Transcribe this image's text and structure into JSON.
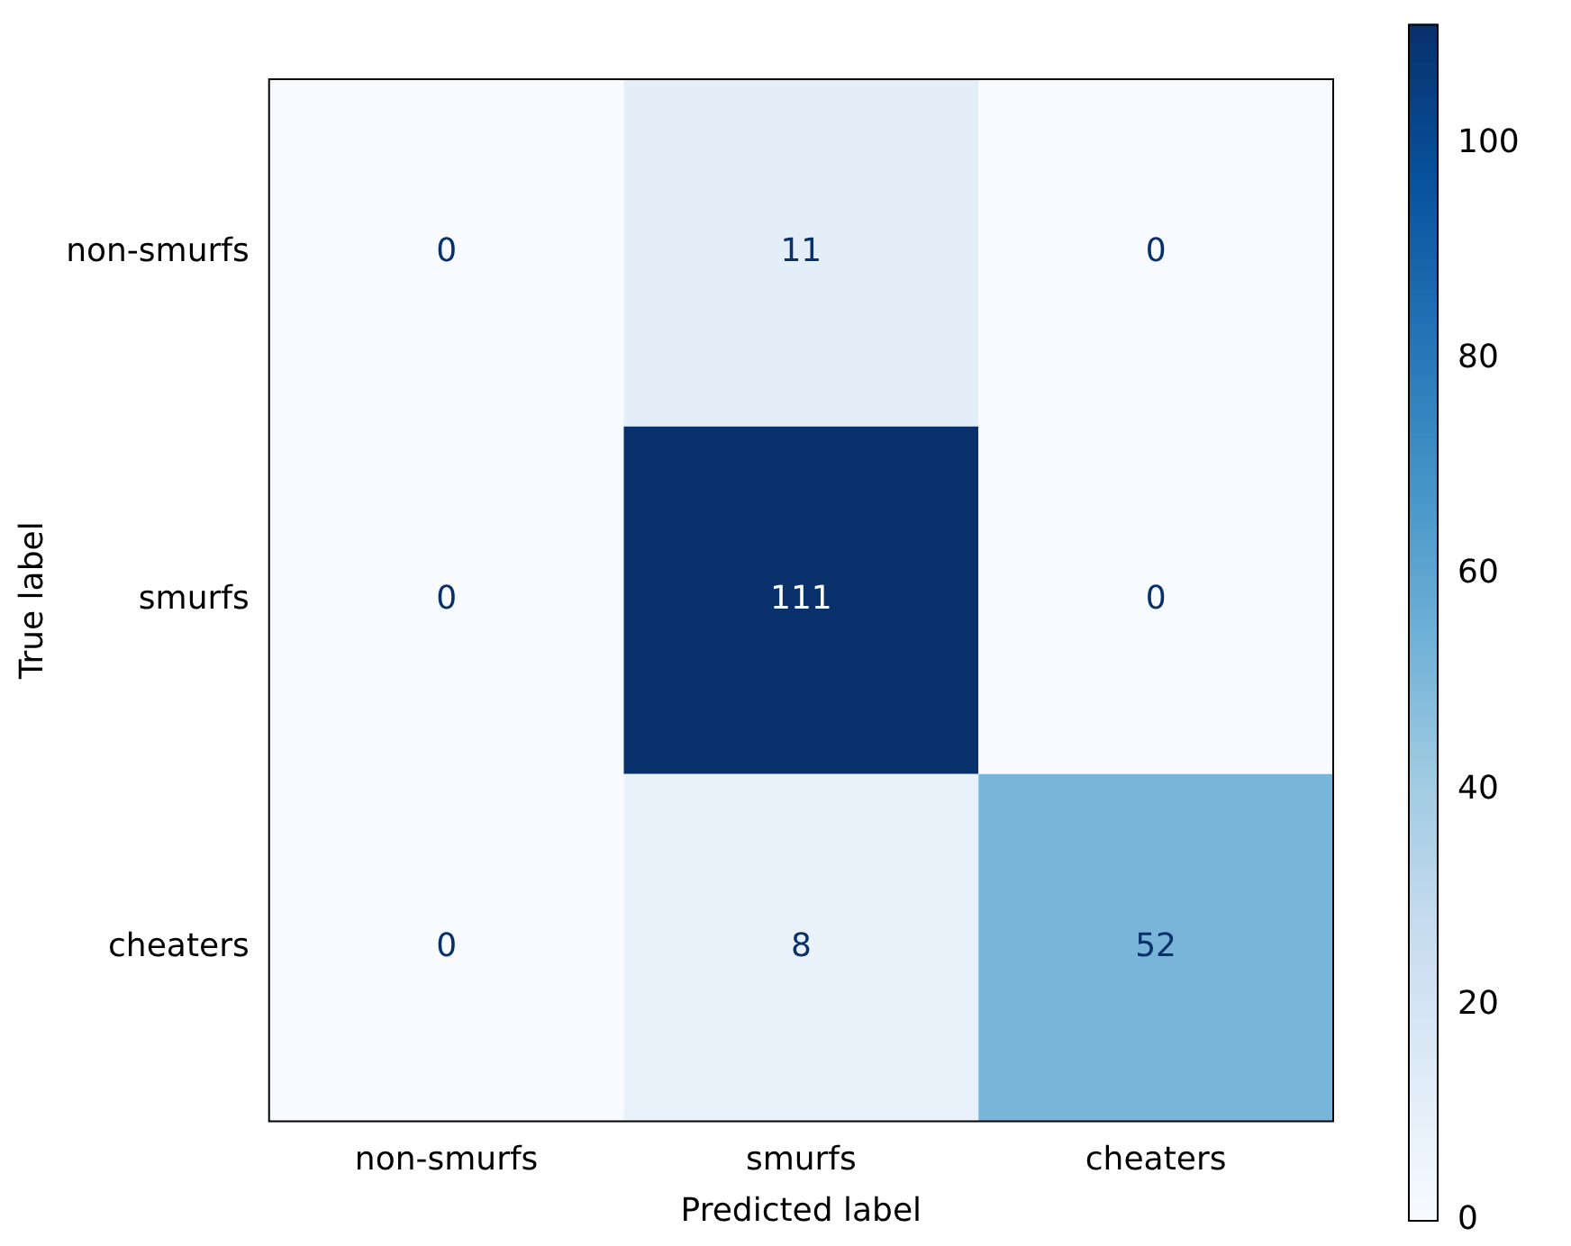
{
  "chart_data": {
    "type": "heatmap",
    "xlabel": "Predicted label",
    "ylabel": "True label",
    "categories": [
      "non-smurfs",
      "smurfs",
      "cheaters"
    ],
    "y_categories": [
      "non-smurfs",
      "smurfs",
      "cheaters"
    ],
    "cells": [
      [
        0,
        11,
        0
      ],
      [
        0,
        111,
        0
      ],
      [
        0,
        8,
        52
      ]
    ],
    "clim": [
      0,
      111
    ],
    "cticks": [
      0,
      20,
      40,
      60,
      80,
      100
    ],
    "data_labels": true,
    "grid": false
  }
}
